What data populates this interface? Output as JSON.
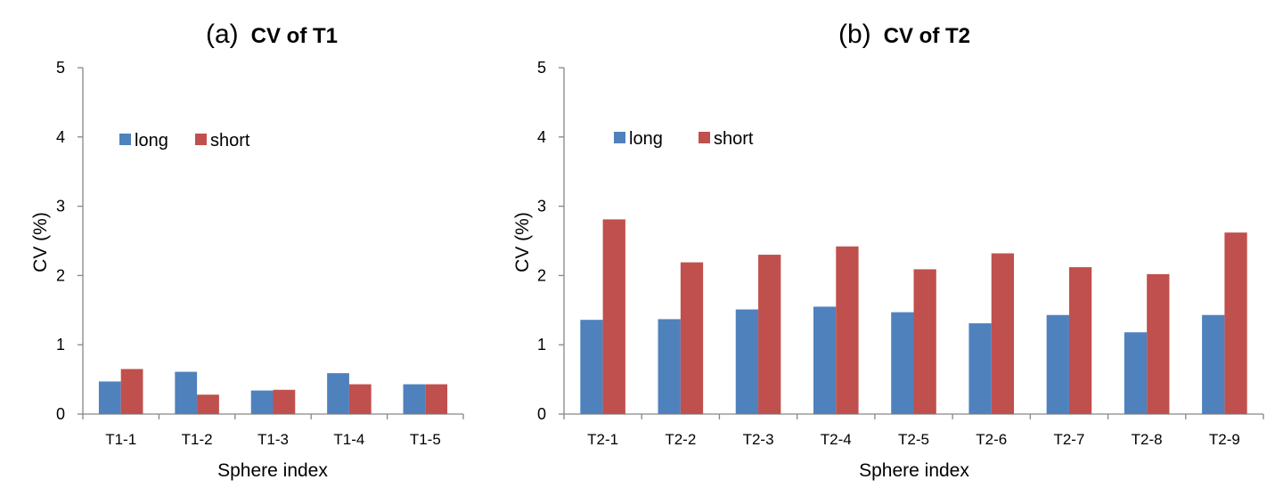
{
  "chart_data": [
    {
      "type": "bar",
      "panel_label": "(a)",
      "title": "CV of T1",
      "xlabel": "Sphere index",
      "ylabel": "CV (%)",
      "ylim": [
        0,
        5
      ],
      "yticks": [
        0,
        1,
        2,
        3,
        4,
        5
      ],
      "grid": false,
      "legend_position": "upper-left",
      "categories": [
        "T1-1",
        "T1-2",
        "T1-3",
        "T1-4",
        "T1-5"
      ],
      "series": [
        {
          "name": "long",
          "color": "#4F81BD",
          "values": [
            0.47,
            0.61,
            0.34,
            0.59,
            0.43
          ]
        },
        {
          "name": "short",
          "color": "#C0504D",
          "values": [
            0.65,
            0.28,
            0.35,
            0.43,
            0.43
          ]
        }
      ]
    },
    {
      "type": "bar",
      "panel_label": "(b)",
      "title": "CV of T2",
      "xlabel": "Sphere index",
      "ylabel": "CV (%)",
      "ylim": [
        0,
        5
      ],
      "yticks": [
        0,
        1,
        2,
        3,
        4,
        5
      ],
      "grid": false,
      "legend_position": "upper-left",
      "categories": [
        "T2-1",
        "T2-2",
        "T2-3",
        "T2-4",
        "T2-5",
        "T2-6",
        "T2-7",
        "T2-8",
        "T2-9"
      ],
      "series": [
        {
          "name": "long",
          "color": "#4F81BD",
          "values": [
            1.36,
            1.37,
            1.51,
            1.55,
            1.47,
            1.31,
            1.43,
            1.18,
            1.43
          ]
        },
        {
          "name": "short",
          "color": "#C0504D",
          "values": [
            2.81,
            2.19,
            2.3,
            2.42,
            2.09,
            2.32,
            2.12,
            2.02,
            2.62
          ]
        }
      ]
    }
  ]
}
